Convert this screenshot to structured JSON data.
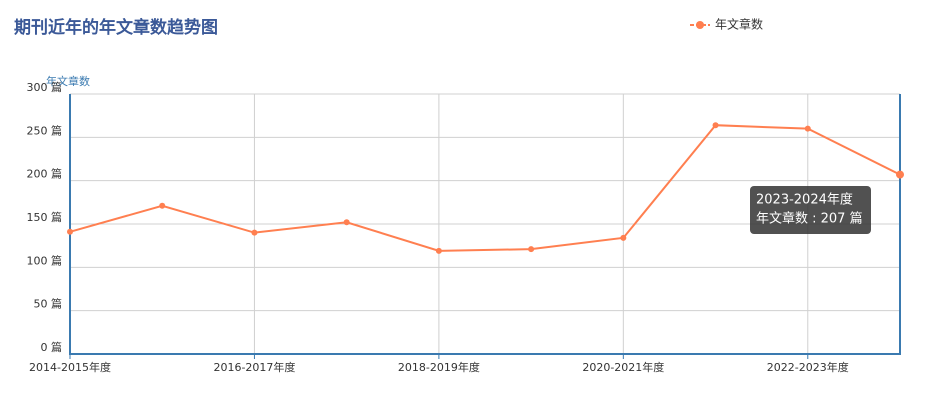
{
  "chart_data": {
    "type": "line",
    "title": "期刊近年的年文章数趋势图",
    "y_label": "年文章数",
    "categories": [
      "2014-2015年度",
      null,
      "2016-2017年度",
      null,
      "2018-2019年度",
      null,
      "2020-2021年度",
      null,
      "2022-2023年度",
      null
    ],
    "series": [
      {
        "name": "年文章数",
        "color": "#ff7f50",
        "values": [
          141,
          171,
          140,
          152,
          119,
          121,
          134,
          264,
          260,
          207
        ]
      }
    ],
    "ylim": [
      0,
      300
    ],
    "yticks": [
      {
        "value": 0,
        "label": "0 篇"
      },
      {
        "value": 50,
        "label": "50 篇"
      },
      {
        "value": 100,
        "label": "100 篇"
      },
      {
        "value": 150,
        "label": "150 篇"
      },
      {
        "value": 200,
        "label": "200 篇"
      },
      {
        "value": 250,
        "label": "250 篇"
      },
      {
        "value": 300,
        "label": "300 篇"
      }
    ],
    "grid": true,
    "legend": "top-right",
    "tooltip": {
      "title": "2023-2024年度",
      "text": "年文章数 : 207 篇",
      "index": 9
    }
  }
}
